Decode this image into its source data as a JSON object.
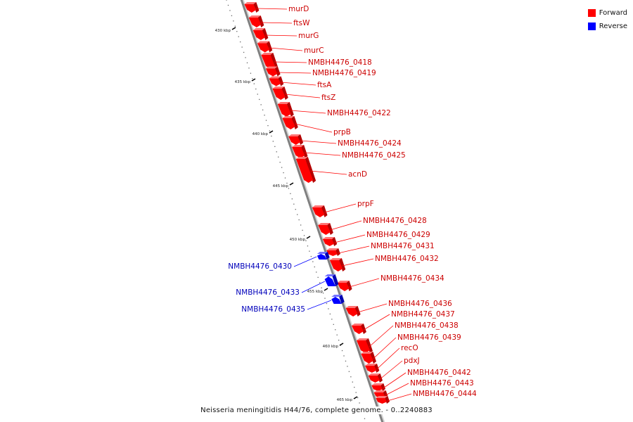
{
  "colors": {
    "forward": "#ff0000",
    "reverse": "#0000ff",
    "backbone": "#808080"
  },
  "legend": [
    {
      "label": "Forward",
      "color": "#ff0000"
    },
    {
      "label": "Reverse",
      "color": "#0000ff"
    }
  ],
  "caption": "Neisseria meningitidis H44/76, complete genome. - 0..2240883",
  "ticks": [
    "430 kbp",
    "435 kbp",
    "440 kbp",
    "445 kbp",
    "450 kbp",
    "455 kbp",
    "460 kbp",
    "465 kbp"
  ],
  "genes": [
    {
      "name": "murD",
      "strand": "forward"
    },
    {
      "name": "ftsW",
      "strand": "forward"
    },
    {
      "name": "murG",
      "strand": "forward"
    },
    {
      "name": "murC",
      "strand": "forward"
    },
    {
      "name": "NMBH4476_0418",
      "strand": "forward"
    },
    {
      "name": "NMBH4476_0419",
      "strand": "forward"
    },
    {
      "name": "ftsA",
      "strand": "forward"
    },
    {
      "name": "ftsZ",
      "strand": "forward"
    },
    {
      "name": "NMBH4476_0422",
      "strand": "forward"
    },
    {
      "name": "prpB",
      "strand": "forward"
    },
    {
      "name": "NMBH4476_0424",
      "strand": "forward"
    },
    {
      "name": "NMBH4476_0425",
      "strand": "forward"
    },
    {
      "name": "acnD",
      "strand": "forward"
    },
    {
      "name": "prpF",
      "strand": "forward"
    },
    {
      "name": "NMBH4476_0428",
      "strand": "forward"
    },
    {
      "name": "NMBH4476_0429",
      "strand": "forward"
    },
    {
      "name": "NMBH4476_0431",
      "strand": "forward"
    },
    {
      "name": "NMBH4476_0432",
      "strand": "forward"
    },
    {
      "name": "NMBH4476_0434",
      "strand": "forward"
    },
    {
      "name": "NMBH4476_0436",
      "strand": "forward"
    },
    {
      "name": "NMBH4476_0437",
      "strand": "forward"
    },
    {
      "name": "NMBH4476_0438",
      "strand": "forward"
    },
    {
      "name": "NMBH4476_0439",
      "strand": "forward"
    },
    {
      "name": "recO",
      "strand": "forward"
    },
    {
      "name": "pdxJ",
      "strand": "forward"
    },
    {
      "name": "NMBH4476_0442",
      "strand": "forward"
    },
    {
      "name": "NMBH4476_0443",
      "strand": "forward"
    },
    {
      "name": "NMBH4476_0444",
      "strand": "forward"
    },
    {
      "name": "NMBH4476_0430",
      "strand": "reverse"
    },
    {
      "name": "NMBH4476_0433",
      "strand": "reverse"
    },
    {
      "name": "NMBH4476_0435",
      "strand": "reverse"
    }
  ]
}
